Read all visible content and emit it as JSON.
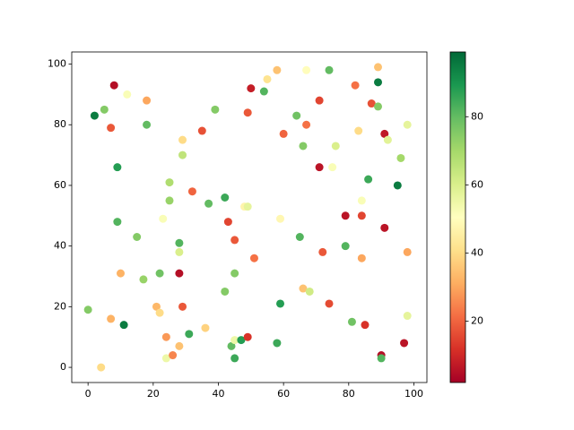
{
  "chart_data": {
    "type": "scatter",
    "colormap": "RdYlGn",
    "x": [
      0,
      4,
      2,
      5,
      8,
      7,
      9,
      9,
      10,
      7,
      11,
      12,
      18,
      18,
      15,
      17,
      21,
      22,
      22,
      23,
      24,
      24,
      25,
      25,
      26,
      28,
      28,
      28,
      28,
      29,
      29,
      29,
      31,
      32,
      35,
      36,
      37,
      39,
      42,
      42,
      43,
      44,
      45,
      45,
      45,
      45,
      47,
      48,
      49,
      49,
      49,
      50,
      51,
      54,
      55,
      58,
      58,
      59,
      59,
      60,
      64,
      65,
      66,
      68,
      66,
      67,
      67,
      74,
      71,
      71,
      72,
      74,
      75,
      76,
      79,
      79,
      81,
      82,
      83,
      84,
      84,
      84,
      85,
      86,
      87,
      89,
      89,
      89,
      90,
      90,
      91,
      92,
      91,
      95,
      96,
      97,
      98,
      98,
      98
    ],
    "y": [
      19,
      0,
      83,
      85,
      93,
      79,
      66,
      48,
      31,
      16,
      14,
      90,
      88,
      80,
      43,
      29,
      20,
      18,
      31,
      49,
      10,
      3,
      61,
      55,
      4,
      41,
      38,
      31,
      7,
      20,
      75,
      70,
      11,
      58,
      78,
      13,
      54,
      85,
      56,
      25,
      48,
      7,
      9,
      3,
      31,
      42,
      9,
      53,
      53,
      10,
      84,
      92,
      36,
      91,
      95,
      98,
      8,
      21,
      49,
      77,
      83,
      43,
      26,
      25,
      73,
      80,
      98,
      98,
      88,
      66,
      38,
      21,
      66,
      73,
      50,
      40,
      15,
      93,
      78,
      55,
      50,
      36,
      14,
      62,
      87,
      99,
      94,
      86,
      4,
      3,
      77,
      75,
      46,
      60,
      69,
      8,
      80,
      38,
      17
    ],
    "c": [
      75,
      40,
      95,
      75,
      5,
      18,
      88,
      82,
      32,
      32,
      95,
      52,
      30,
      80,
      75,
      72,
      33,
      40,
      78,
      52,
      28,
      55,
      68,
      72,
      25,
      82,
      60,
      5,
      35,
      18,
      40,
      65,
      85,
      20,
      17,
      38,
      80,
      75,
      85,
      75,
      15,
      80,
      55,
      85,
      75,
      18,
      88,
      47,
      57,
      12,
      18,
      8,
      22,
      82,
      42,
      35,
      85,
      88,
      48,
      20,
      78,
      82,
      35,
      62,
      75,
      22,
      50,
      80,
      15,
      6,
      18,
      16,
      52,
      60,
      6,
      82,
      78,
      22,
      40,
      52,
      15,
      30,
      12,
      85,
      17,
      35,
      95,
      75,
      5,
      82,
      7,
      58,
      6,
      95,
      70,
      6,
      57,
      30,
      57
    ],
    "xlim": [
      -5,
      104
    ],
    "ylim": [
      -5,
      104
    ],
    "xticks": [
      0,
      20,
      40,
      60,
      80,
      100
    ],
    "yticks": [
      0,
      20,
      40,
      60,
      80,
      100
    ],
    "clim": [
      2,
      99
    ],
    "cticks": [
      20,
      40,
      60,
      80
    ]
  }
}
